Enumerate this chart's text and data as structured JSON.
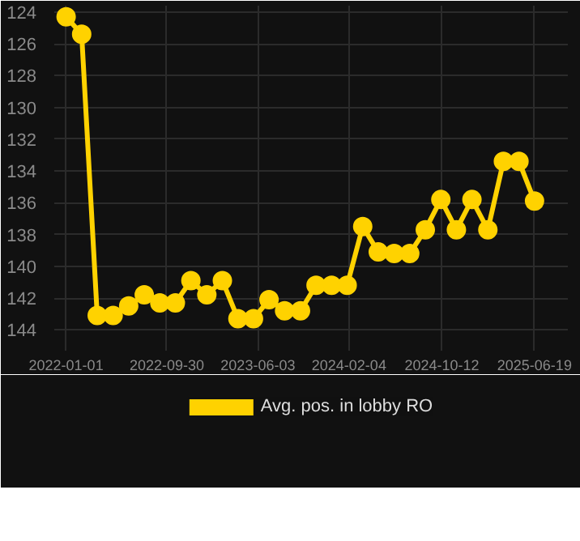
{
  "chart_data": {
    "type": "line",
    "x": [
      "2022-01-01",
      "2022-02-12",
      "2022-03-26",
      "2022-05-08",
      "2022-06-19",
      "2022-07-31",
      "2022-09-11",
      "2022-10-23",
      "2022-12-04",
      "2023-01-16",
      "2023-02-27",
      "2023-04-10",
      "2023-05-22",
      "2023-07-03",
      "2023-08-14",
      "2023-09-26",
      "2023-11-07",
      "2023-12-19",
      "2024-01-30",
      "2024-03-12",
      "2024-04-23",
      "2024-06-05",
      "2024-07-17",
      "2024-08-28",
      "2024-10-09",
      "2024-11-20",
      "2025-01-01",
      "2025-02-13",
      "2025-03-27",
      "2025-05-08",
      "2025-06-19"
    ],
    "series": [
      {
        "name": "Avg. pos. in lobby RO",
        "color": "#ffd200",
        "values": [
          124.3,
          125.4,
          143.1,
          143.1,
          142.5,
          141.8,
          142.3,
          142.3,
          140.9,
          141.8,
          140.9,
          143.3,
          143.3,
          142.1,
          142.8,
          142.8,
          141.2,
          141.2,
          141.2,
          137.5,
          139.1,
          139.2,
          139.2,
          137.7,
          135.8,
          137.7,
          135.8,
          137.7,
          133.4,
          133.4,
          135.9
        ]
      }
    ],
    "xlim": [
      "2021-11-30",
      "2025-09-17"
    ],
    "xticks": [
      "2022-01-01",
      "2022-09-30",
      "2023-06-03",
      "2024-02-04",
      "2024-10-12",
      "2025-06-19"
    ],
    "ylim": [
      144.7,
      123.6
    ],
    "yticks": [
      124,
      126,
      128,
      130,
      132,
      134,
      136,
      138,
      140,
      142,
      144
    ],
    "grid": true,
    "legend": "bottom",
    "marker": "circle",
    "line_style": "solid"
  }
}
